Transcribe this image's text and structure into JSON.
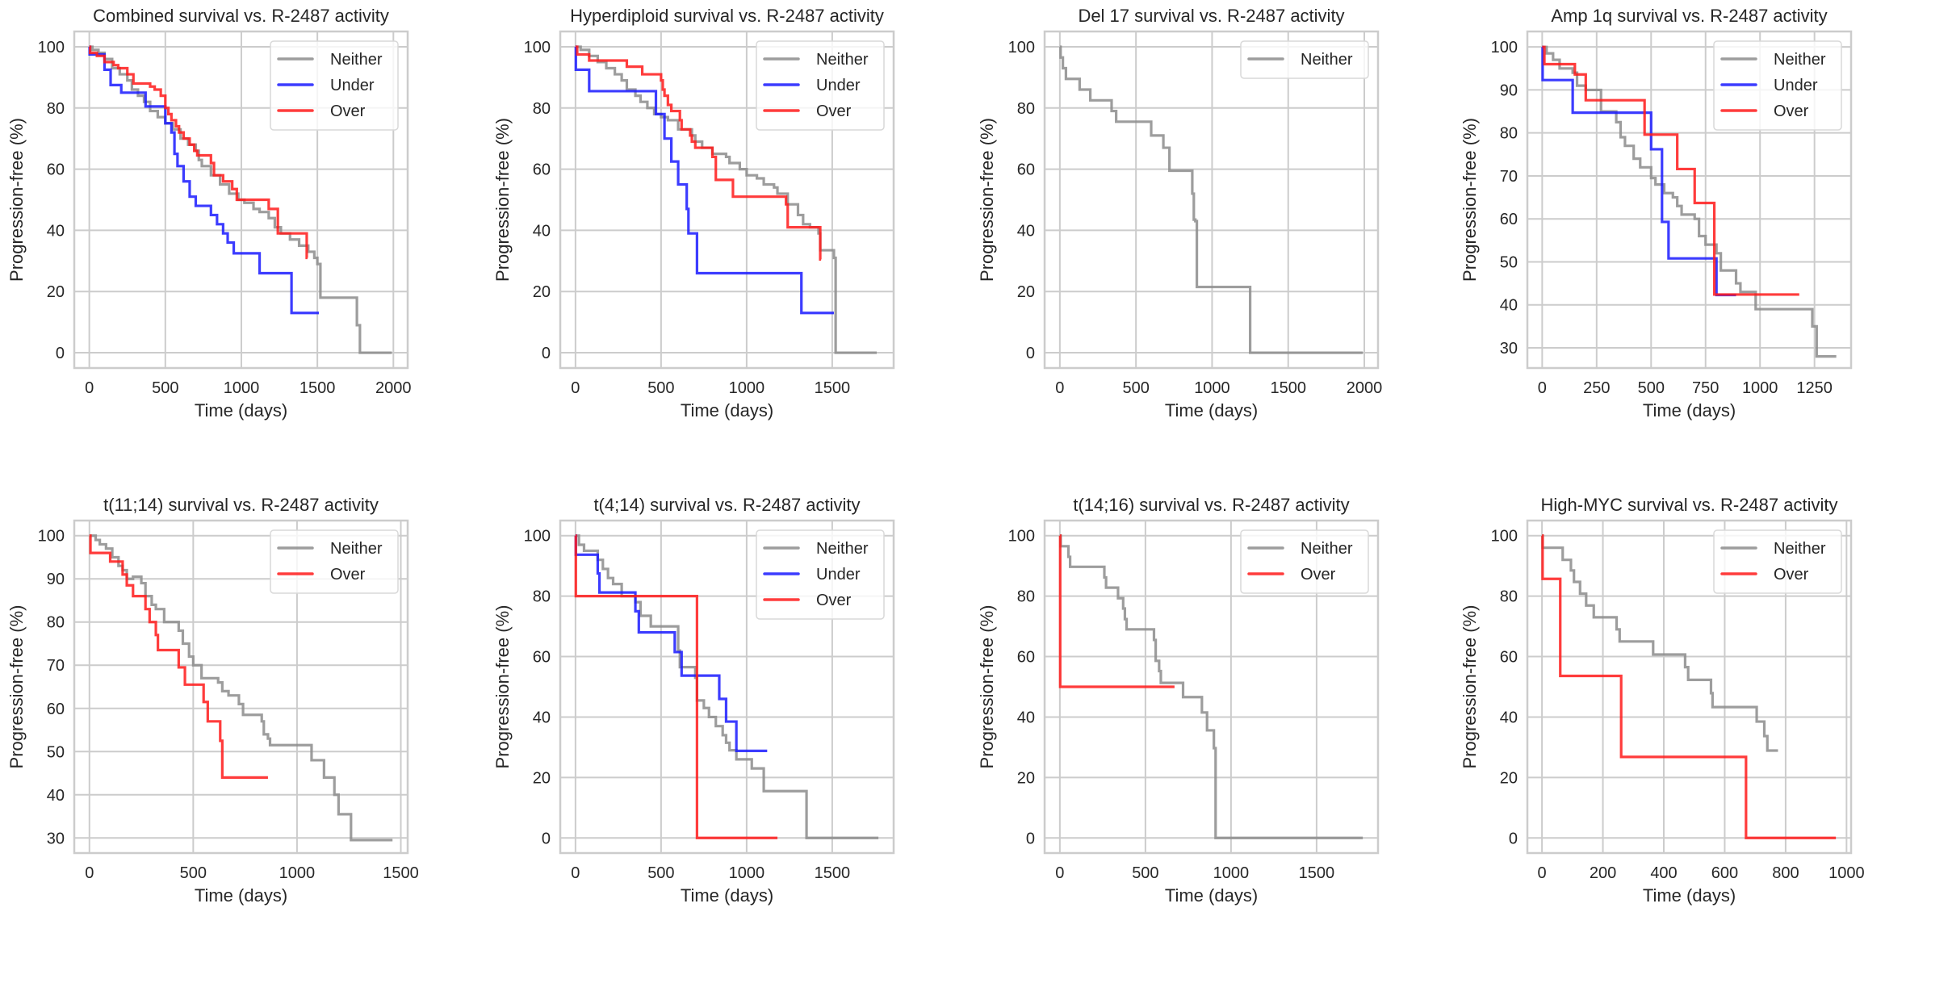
{
  "figure": {
    "colors": {
      "Neither": "#8c8c8c",
      "Under": "#1a1aff",
      "Over": "#ff1a1a",
      "grid": "#cccccc",
      "frame": "#cccccc",
      "text": "#262626"
    }
  },
  "chart_data": [
    {
      "type": "line",
      "subtype": "step (Kaplan-Meier)",
      "title": "Combined survival vs. R-2487 activity",
      "xlabel": "Time (days)",
      "ylabel": "Progression-free (%)",
      "xlim": [
        -99,
        2094
      ],
      "ylim": [
        -5,
        105
      ],
      "xticks": [
        0,
        500,
        1000,
        1500,
        2000
      ],
      "yticks": [
        0,
        20,
        40,
        60,
        80,
        100
      ],
      "grid": true,
      "legend": "top-right",
      "series": [
        {
          "name": "Neither",
          "x": [
            0,
            20,
            60,
            100,
            150,
            200,
            250,
            280,
            320,
            360,
            400,
            450,
            500,
            550,
            600,
            650,
            700,
            720,
            740,
            800,
            860,
            920,
            980,
            1020,
            1080,
            1120,
            1180,
            1220,
            1260,
            1320,
            1380,
            1440,
            1480,
            1500,
            1520,
            1760,
            1780,
            1990
          ],
          "y": [
            100,
            99,
            98,
            96,
            93,
            91,
            89,
            86,
            84,
            82,
            79,
            77,
            75,
            73,
            70,
            68,
            66,
            63,
            61,
            58,
            55,
            52,
            50,
            49,
            47,
            46,
            44,
            41,
            39,
            37,
            35,
            33,
            31,
            29,
            18,
            9,
            0,
            0
          ]
        },
        {
          "name": "Under",
          "x": [
            0,
            2,
            60,
            100,
            140,
            210,
            350,
            370,
            480,
            500,
            540,
            560,
            580,
            620,
            660,
            700,
            800,
            840,
            880,
            910,
            950,
            1120,
            1330,
            1510
          ],
          "y": [
            100,
            97.5,
            97.5,
            92.5,
            87.5,
            85,
            85,
            80.5,
            80.5,
            75,
            72,
            65,
            61,
            56,
            51,
            48,
            45,
            42,
            39,
            36,
            32.5,
            26,
            13,
            13
          ]
        },
        {
          "name": "Over",
          "x": [
            0,
            5,
            50,
            100,
            160,
            190,
            250,
            290,
            320,
            400,
            430,
            470,
            500,
            520,
            540,
            570,
            590,
            620,
            660,
            690,
            710,
            800,
            820,
            880,
            940,
            970,
            1180,
            1240,
            1430,
            1435
          ],
          "y": [
            100,
            98,
            97,
            95,
            94,
            93,
            91,
            88,
            88,
            87,
            86,
            84,
            80,
            78,
            76,
            74,
            72,
            70,
            68,
            66,
            64.5,
            62,
            58,
            56,
            53.5,
            50,
            47,
            39,
            31,
            31
          ]
        }
      ]
    },
    {
      "type": "line",
      "subtype": "step (Kaplan-Meier)",
      "title": "Hyperdiploid survival vs. R-2487 activity",
      "xlabel": "Time (days)",
      "ylabel": "Progression-free (%)",
      "xlim": [
        -89,
        1859
      ],
      "ylim": [
        -5,
        105
      ],
      "xticks": [
        0,
        500,
        1000,
        1500
      ],
      "yticks": [
        0,
        20,
        40,
        60,
        80,
        100
      ],
      "grid": true,
      "legend": "top-right",
      "series": [
        {
          "name": "Neither",
          "x": [
            0,
            30,
            80,
            130,
            180,
            230,
            270,
            300,
            350,
            380,
            420,
            460,
            500,
            540,
            600,
            680,
            700,
            740,
            800,
            880,
            900,
            960,
            1000,
            1060,
            1100,
            1160,
            1180,
            1240,
            1300,
            1330,
            1370,
            1420,
            1430,
            1500,
            1510,
            1520,
            1760
          ],
          "y": [
            100,
            99,
            97,
            95,
            93,
            91,
            89,
            86,
            84,
            82,
            80,
            78,
            77,
            76,
            73,
            71,
            69,
            67,
            65,
            64,
            62,
            60,
            58,
            57,
            55,
            54,
            52,
            48.5,
            45,
            42,
            41,
            39,
            33.5,
            33.5,
            31,
            0,
            0
          ]
        },
        {
          "name": "Under",
          "x": [
            0,
            2,
            80,
            470,
            520,
            560,
            600,
            650,
            660,
            710,
            1320,
            1510
          ],
          "y": [
            100,
            92.5,
            85.5,
            78,
            70,
            62.5,
            55,
            47,
            39,
            26,
            13,
            13
          ]
        },
        {
          "name": "Over",
          "x": [
            0,
            10,
            80,
            300,
            390,
            500,
            510,
            520,
            540,
            560,
            610,
            620,
            670,
            680,
            700,
            750,
            800,
            820,
            920,
            1230,
            1240,
            1430,
            1435
          ],
          "y": [
            100,
            97.5,
            95.5,
            93.5,
            91,
            89,
            86,
            84,
            81,
            79,
            76,
            73,
            71,
            69,
            67,
            67,
            64,
            56.5,
            51,
            48.5,
            41,
            30.5,
            30.5
          ]
        }
      ]
    },
    {
      "type": "line",
      "subtype": "step (Kaplan-Meier)",
      "title": "Del 17 survival vs. R-2487 activity",
      "xlabel": "Time (days)",
      "ylabel": "Progression-free (%)",
      "xlim": [
        -100,
        2090
      ],
      "ylim": [
        -5,
        105
      ],
      "xticks": [
        0,
        500,
        1000,
        1500,
        2000
      ],
      "yticks": [
        0,
        20,
        40,
        60,
        80,
        100
      ],
      "grid": true,
      "legend": "top-right",
      "series": [
        {
          "name": "Neither",
          "x": [
            0,
            5,
            20,
            40,
            130,
            200,
            340,
            370,
            600,
            680,
            720,
            870,
            880,
            890,
            900,
            1250,
            1990
          ],
          "y": [
            100,
            96.5,
            93,
            89.5,
            86,
            82.5,
            79,
            75.5,
            71,
            67,
            59.5,
            52,
            43.5,
            43,
            21.5,
            0,
            0
          ]
        }
      ]
    },
    {
      "type": "line",
      "subtype": "step (Kaplan-Meier)",
      "title": "Amp 1q survival vs. R-2487 activity",
      "xlabel": "Time (days)",
      "ylabel": "Progression-free (%)",
      "xlim": [
        -68,
        1418
      ],
      "ylim": [
        25.3,
        103.6
      ],
      "xticks": [
        0,
        250,
        500,
        750,
        1000,
        1250
      ],
      "yticks": [
        30,
        40,
        50,
        60,
        70,
        80,
        90,
        100
      ],
      "grid": true,
      "legend": "top-right",
      "series": [
        {
          "name": "Neither",
          "x": [
            0,
            20,
            50,
            80,
            140,
            160,
            200,
            270,
            340,
            360,
            380,
            420,
            450,
            500,
            520,
            560,
            600,
            620,
            640,
            700,
            720,
            750,
            800,
            820,
            890,
            910,
            980,
            1240,
            1260,
            1350
          ],
          "y": [
            100,
            98.5,
            97,
            95,
            94,
            91,
            90,
            85,
            82.5,
            79,
            77,
            74,
            72,
            69.5,
            68,
            66,
            65,
            63,
            61,
            60,
            56,
            54,
            52,
            48,
            45,
            43,
            39,
            35,
            28,
            28
          ]
        },
        {
          "name": "Under",
          "x": [
            0,
            2,
            140,
            500,
            550,
            580,
            800,
            890
          ],
          "y": [
            100,
            92.3,
            84.7,
            76.2,
            59.3,
            50.8,
            42.3,
            42.3
          ]
        },
        {
          "name": "Over",
          "x": [
            0,
            10,
            150,
            200,
            470,
            620,
            700,
            790,
            1180
          ],
          "y": [
            100,
            96,
            93.6,
            87.6,
            79.6,
            71.6,
            63.7,
            42.4,
            42.4
          ]
        }
      ]
    },
    {
      "type": "line",
      "subtype": "step (Kaplan-Meier)",
      "title": "t(11;14) survival vs. R-2487 activity",
      "xlabel": "Time (days)",
      "ylabel": "Progression-free (%)",
      "xlim": [
        -73,
        1533
      ],
      "ylim": [
        26.5,
        103.5
      ],
      "xticks": [
        0,
        500,
        1000,
        1500
      ],
      "yticks": [
        30,
        40,
        50,
        60,
        70,
        80,
        90,
        100
      ],
      "grid": true,
      "legend": "top-right",
      "series": [
        {
          "name": "Neither",
          "x": [
            0,
            30,
            50,
            80,
            110,
            140,
            160,
            180,
            210,
            250,
            270,
            300,
            320,
            360,
            430,
            450,
            480,
            500,
            540,
            620,
            640,
            670,
            720,
            740,
            830,
            840,
            860,
            870,
            1070,
            1130,
            1180,
            1200,
            1260,
            1460
          ],
          "y": [
            100,
            99,
            98,
            97,
            95,
            93,
            92,
            90,
            90.5,
            89,
            86,
            84,
            83,
            80,
            78,
            75,
            72,
            70,
            67,
            66,
            64,
            63,
            61,
            58.5,
            57,
            54,
            53,
            51.5,
            48,
            44,
            40,
            35.5,
            29.5,
            29.5
          ]
        },
        {
          "name": "Over",
          "x": [
            0,
            5,
            100,
            160,
            180,
            210,
            270,
            290,
            320,
            330,
            430,
            460,
            550,
            570,
            630,
            640,
            860
          ],
          "y": [
            100,
            96,
            94,
            91,
            88.5,
            86,
            83,
            80,
            77,
            73.5,
            69.5,
            65.5,
            61.5,
            57,
            52.5,
            44,
            44
          ]
        }
      ]
    },
    {
      "type": "line",
      "subtype": "step (Kaplan-Meier)",
      "title": "t(4;14) survival vs. R-2487 activity",
      "xlabel": "Time (days)",
      "ylabel": "Progression-free (%)",
      "xlim": [
        -89,
        1859
      ],
      "ylim": [
        -5,
        105
      ],
      "xticks": [
        0,
        500,
        1000,
        1500
      ],
      "yticks": [
        0,
        20,
        40,
        60,
        80,
        100
      ],
      "grid": true,
      "legend": "top-right",
      "series": [
        {
          "name": "Neither",
          "x": [
            0,
            20,
            50,
            130,
            160,
            190,
            220,
            270,
            350,
            380,
            440,
            600,
            610,
            630,
            700,
            710,
            750,
            780,
            820,
            860,
            880,
            900,
            940,
            1030,
            1100,
            1350,
            1770
          ],
          "y": [
            100,
            97,
            95,
            92,
            89,
            86,
            84,
            80,
            78,
            73.5,
            70,
            62,
            56.5,
            56.5,
            53,
            45.5,
            43,
            40,
            37,
            34,
            31.5,
            29,
            26,
            23,
            15.5,
            0,
            0
          ]
        },
        {
          "name": "Under",
          "x": [
            0,
            2,
            130,
            140,
            350,
            370,
            580,
            620,
            840,
            880,
            940,
            1120
          ],
          "y": [
            100,
            93.7,
            87.5,
            81.2,
            75,
            68,
            61.5,
            53.7,
            46,
            38.5,
            28.8,
            28.8
          ]
        },
        {
          "name": "Over",
          "x": [
            0,
            2,
            710,
            1180
          ],
          "y": [
            100,
            80,
            0,
            0
          ]
        }
      ]
    },
    {
      "type": "line",
      "subtype": "step (Kaplan-Meier)",
      "title": "t(14;16) survival vs. R-2487 activity",
      "xlabel": "Time (days)",
      "ylabel": "Progression-free (%)",
      "xlim": [
        -89,
        1859
      ],
      "ylim": [
        -5,
        105
      ],
      "xticks": [
        0,
        500,
        1000,
        1500
      ],
      "yticks": [
        0,
        20,
        40,
        60,
        80,
        100
      ],
      "grid": true,
      "legend": "top-right",
      "series": [
        {
          "name": "Neither",
          "x": [
            0,
            5,
            50,
            60,
            260,
            270,
            340,
            370,
            380,
            390,
            550,
            560,
            580,
            590,
            720,
            830,
            860,
            900,
            910,
            1770
          ],
          "y": [
            100,
            96.5,
            93,
            89.7,
            86.2,
            82.8,
            79.3,
            75.9,
            72.4,
            69,
            65.5,
            58.6,
            55.2,
            51.3,
            46.6,
            41.5,
            35.6,
            29.7,
            0,
            0
          ]
        },
        {
          "name": "Over",
          "x": [
            0,
            2,
            670
          ],
          "y": [
            100,
            50,
            50
          ]
        }
      ]
    },
    {
      "type": "line",
      "subtype": "step (Kaplan-Meier)",
      "title": "High-MYC survival vs. R-2487 activity",
      "xlabel": "Time (days)",
      "ylabel": "Progression-free (%)",
      "xlim": [
        -48,
        1015
      ],
      "ylim": [
        -5,
        105
      ],
      "xticks": [
        0,
        200,
        400,
        600,
        800,
        1000
      ],
      "yticks": [
        0,
        20,
        40,
        60,
        80,
        100
      ],
      "grid": true,
      "legend": "top-right",
      "series": [
        {
          "name": "Neither",
          "x": [
            0,
            2,
            68,
            95,
            105,
            125,
            145,
            170,
            245,
            255,
            365,
            470,
            480,
            555,
            560,
            705,
            730,
            740,
            775
          ],
          "y": [
            100,
            96,
            92,
            88.5,
            84.7,
            80.8,
            76.9,
            73,
            69,
            65,
            60.7,
            56.5,
            52.3,
            47.9,
            43.3,
            38.5,
            33.7,
            28.9,
            28.9
          ]
        },
        {
          "name": "Over",
          "x": [
            0,
            2,
            60,
            260,
            670,
            965
          ],
          "y": [
            100,
            85.7,
            53.6,
            26.8,
            0,
            0
          ]
        }
      ]
    }
  ]
}
